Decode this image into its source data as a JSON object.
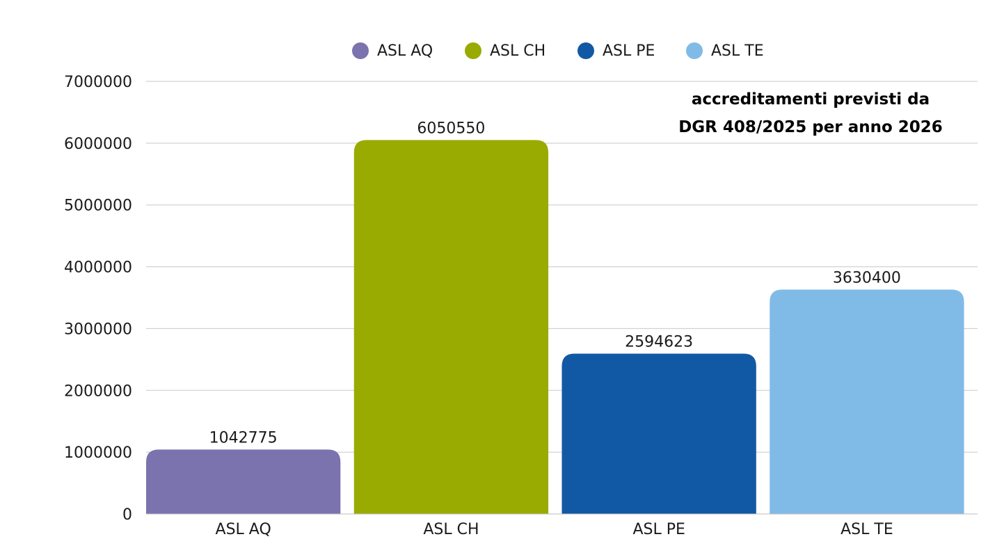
{
  "chart_data": {
    "type": "bar",
    "title_lines": [
      "accreditamenti previsti da",
      "DGR 408/2025 per anno 2026"
    ],
    "xlabel": "",
    "ylabel": "",
    "categories": [
      "ASL AQ",
      "ASL CH",
      "ASL PE",
      "ASL TE"
    ],
    "values": [
      1042775,
      6050550,
      2594623,
      3630400
    ],
    "data_labels": [
      "1042775",
      "6050550",
      "2594623",
      "3630400"
    ],
    "colors": [
      "#7b73ae",
      "#99ab00",
      "#1259a5",
      "#80bbe8"
    ],
    "ylim": [
      0,
      7000000
    ],
    "yticks": [
      0,
      1000000,
      2000000,
      3000000,
      4000000,
      5000000,
      6000000,
      7000000
    ],
    "ytick_labels": [
      "0",
      "1000000",
      "2000000",
      "3000000",
      "4000000",
      "5000000",
      "6000000",
      "7000000"
    ],
    "legend": {
      "placement": "top-center",
      "entries": [
        "ASL AQ",
        "ASL CH",
        "ASL PE",
        "ASL TE"
      ]
    },
    "grid": true
  }
}
